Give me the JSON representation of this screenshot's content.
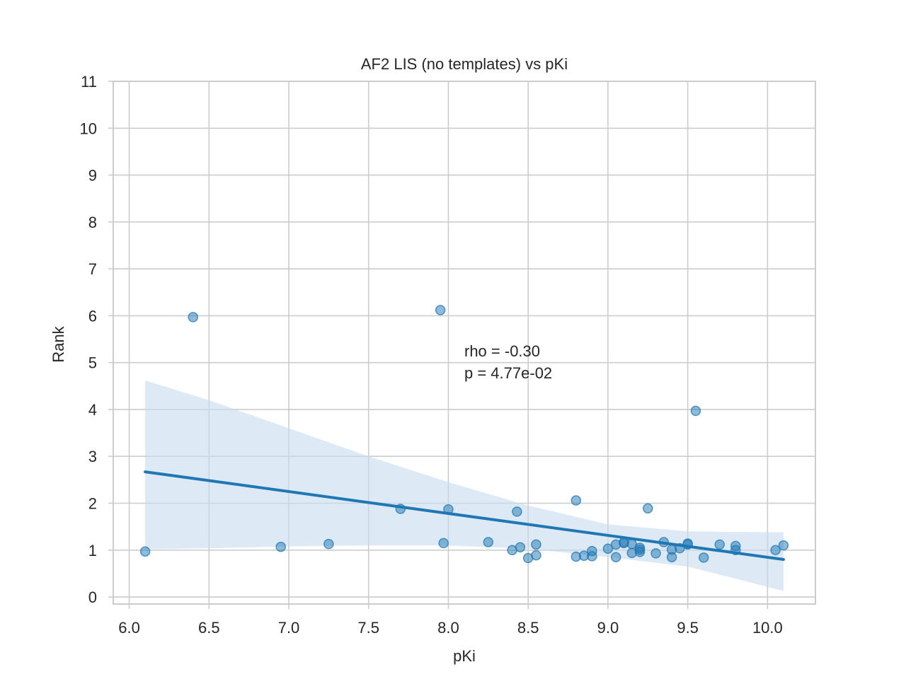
{
  "chart_data": {
    "type": "scatter",
    "title": "AF2 LIS (no templates) vs pKi",
    "xlabel": "pKi",
    "ylabel": "Rank",
    "xlim": [
      5.9,
      10.3
    ],
    "ylim": [
      -0.15,
      11
    ],
    "xticks": [
      "6.0",
      "6.5",
      "7.0",
      "7.5",
      "8.0",
      "8.5",
      "9.0",
      "9.5",
      "10.0"
    ],
    "yticks": [
      "0",
      "1",
      "2",
      "3",
      "4",
      "5",
      "6",
      "7",
      "8",
      "9",
      "10",
      "11"
    ],
    "grid": true,
    "annotation": [
      "rho = -0.30",
      "p = 4.77e-02"
    ],
    "colors": {
      "points": "#1f77b4",
      "line": "#1f77b4",
      "band": "#c6dbef",
      "grid": "#cccccc",
      "spine": "#cccccc"
    },
    "points": [
      {
        "x": 6.1,
        "y": 0.97
      },
      {
        "x": 6.4,
        "y": 5.97
      },
      {
        "x": 6.95,
        "y": 1.07
      },
      {
        "x": 7.25,
        "y": 1.13
      },
      {
        "x": 7.7,
        "y": 1.88
      },
      {
        "x": 7.95,
        "y": 6.12
      },
      {
        "x": 7.97,
        "y": 1.15
      },
      {
        "x": 8.0,
        "y": 1.87
      },
      {
        "x": 8.25,
        "y": 1.17
      },
      {
        "x": 8.4,
        "y": 1.0
      },
      {
        "x": 8.43,
        "y": 1.82
      },
      {
        "x": 8.45,
        "y": 1.06
      },
      {
        "x": 8.5,
        "y": 0.83
      },
      {
        "x": 8.55,
        "y": 1.12
      },
      {
        "x": 8.55,
        "y": 0.89
      },
      {
        "x": 8.8,
        "y": 2.06
      },
      {
        "x": 8.8,
        "y": 0.86
      },
      {
        "x": 8.85,
        "y": 0.88
      },
      {
        "x": 8.9,
        "y": 0.98
      },
      {
        "x": 8.9,
        "y": 0.87
      },
      {
        "x": 9.0,
        "y": 1.03
      },
      {
        "x": 9.05,
        "y": 1.12
      },
      {
        "x": 9.05,
        "y": 0.85
      },
      {
        "x": 9.1,
        "y": 1.17
      },
      {
        "x": 9.1,
        "y": 1.15
      },
      {
        "x": 9.15,
        "y": 1.13
      },
      {
        "x": 9.15,
        "y": 0.94
      },
      {
        "x": 9.2,
        "y": 1.05
      },
      {
        "x": 9.2,
        "y": 1.01
      },
      {
        "x": 9.2,
        "y": 0.96
      },
      {
        "x": 9.25,
        "y": 1.89
      },
      {
        "x": 9.3,
        "y": 0.93
      },
      {
        "x": 9.35,
        "y": 1.17
      },
      {
        "x": 9.4,
        "y": 1.01
      },
      {
        "x": 9.4,
        "y": 0.85
      },
      {
        "x": 9.45,
        "y": 1.04
      },
      {
        "x": 9.5,
        "y": 1.14
      },
      {
        "x": 9.5,
        "y": 1.12
      },
      {
        "x": 9.55,
        "y": 3.97
      },
      {
        "x": 9.6,
        "y": 0.84
      },
      {
        "x": 9.7,
        "y": 1.12
      },
      {
        "x": 9.8,
        "y": 1.09
      },
      {
        "x": 9.8,
        "y": 1.0
      },
      {
        "x": 10.05,
        "y": 1.0
      },
      {
        "x": 10.1,
        "y": 1.1
      }
    ],
    "regression_line": {
      "x": [
        6.1,
        10.1
      ],
      "y": [
        2.67,
        0.8
      ]
    },
    "confidence_band": {
      "x": [
        6.1,
        6.5,
        7.0,
        7.5,
        8.0,
        8.5,
        9.0,
        9.5,
        10.1
      ],
      "upper": [
        4.62,
        4.2,
        3.6,
        3.0,
        2.45,
        1.95,
        1.55,
        1.4,
        1.38
      ],
      "lower": [
        1.02,
        1.04,
        1.08,
        1.1,
        1.1,
        1.03,
        0.85,
        0.65,
        0.13
      ]
    }
  }
}
